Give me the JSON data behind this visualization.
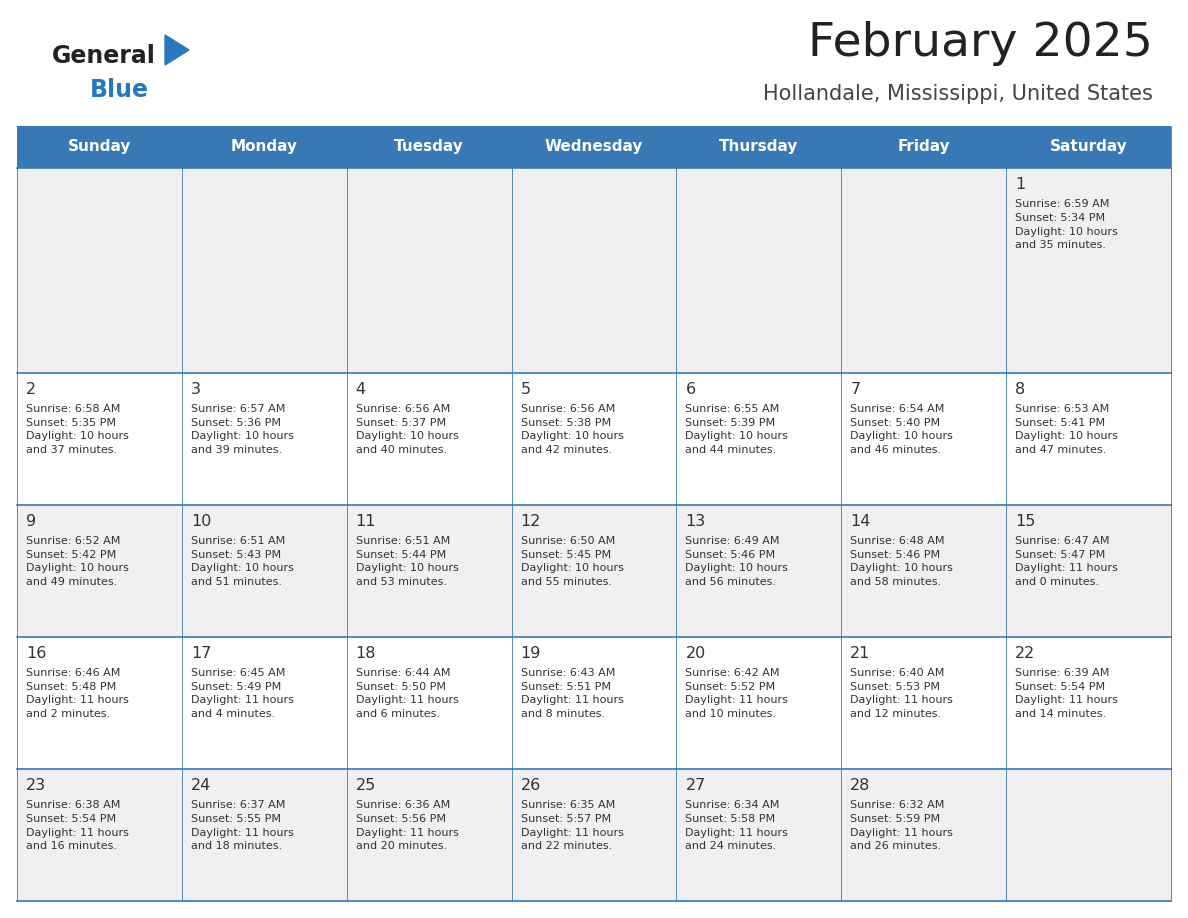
{
  "title": "February 2025",
  "subtitle": "Hollandale, Mississippi, United States",
  "days_of_week": [
    "Sunday",
    "Monday",
    "Tuesday",
    "Wednesday",
    "Thursday",
    "Friday",
    "Saturday"
  ],
  "header_bg": "#3878b4",
  "header_text": "#ffffff",
  "row_bg_odd": "#f0f0f0",
  "row_bg_even": "#ffffff",
  "cell_border_color": "#3878b4",
  "day_num_color": "#333333",
  "info_color": "#333333",
  "title_color": "#222222",
  "subtitle_color": "#444444",
  "logo_general_color": "#222222",
  "logo_blue_color": "#2878be",
  "calendar": [
    [
      null,
      null,
      null,
      null,
      null,
      null,
      {
        "day": 1,
        "sunrise": "6:59 AM",
        "sunset": "5:34 PM",
        "daylight": "10 hours and 35 minutes."
      }
    ],
    [
      {
        "day": 2,
        "sunrise": "6:58 AM",
        "sunset": "5:35 PM",
        "daylight": "10 hours and 37 minutes."
      },
      {
        "day": 3,
        "sunrise": "6:57 AM",
        "sunset": "5:36 PM",
        "daylight": "10 hours and 39 minutes."
      },
      {
        "day": 4,
        "sunrise": "6:56 AM",
        "sunset": "5:37 PM",
        "daylight": "10 hours and 40 minutes."
      },
      {
        "day": 5,
        "sunrise": "6:56 AM",
        "sunset": "5:38 PM",
        "daylight": "10 hours and 42 minutes."
      },
      {
        "day": 6,
        "sunrise": "6:55 AM",
        "sunset": "5:39 PM",
        "daylight": "10 hours and 44 minutes."
      },
      {
        "day": 7,
        "sunrise": "6:54 AM",
        "sunset": "5:40 PM",
        "daylight": "10 hours and 46 minutes."
      },
      {
        "day": 8,
        "sunrise": "6:53 AM",
        "sunset": "5:41 PM",
        "daylight": "10 hours and 47 minutes."
      }
    ],
    [
      {
        "day": 9,
        "sunrise": "6:52 AM",
        "sunset": "5:42 PM",
        "daylight": "10 hours and 49 minutes."
      },
      {
        "day": 10,
        "sunrise": "6:51 AM",
        "sunset": "5:43 PM",
        "daylight": "10 hours and 51 minutes."
      },
      {
        "day": 11,
        "sunrise": "6:51 AM",
        "sunset": "5:44 PM",
        "daylight": "10 hours and 53 minutes."
      },
      {
        "day": 12,
        "sunrise": "6:50 AM",
        "sunset": "5:45 PM",
        "daylight": "10 hours and 55 minutes."
      },
      {
        "day": 13,
        "sunrise": "6:49 AM",
        "sunset": "5:46 PM",
        "daylight": "10 hours and 56 minutes."
      },
      {
        "day": 14,
        "sunrise": "6:48 AM",
        "sunset": "5:46 PM",
        "daylight": "10 hours and 58 minutes."
      },
      {
        "day": 15,
        "sunrise": "6:47 AM",
        "sunset": "5:47 PM",
        "daylight": "11 hours and 0 minutes."
      }
    ],
    [
      {
        "day": 16,
        "sunrise": "6:46 AM",
        "sunset": "5:48 PM",
        "daylight": "11 hours and 2 minutes."
      },
      {
        "day": 17,
        "sunrise": "6:45 AM",
        "sunset": "5:49 PM",
        "daylight": "11 hours and 4 minutes."
      },
      {
        "day": 18,
        "sunrise": "6:44 AM",
        "sunset": "5:50 PM",
        "daylight": "11 hours and 6 minutes."
      },
      {
        "day": 19,
        "sunrise": "6:43 AM",
        "sunset": "5:51 PM",
        "daylight": "11 hours and 8 minutes."
      },
      {
        "day": 20,
        "sunrise": "6:42 AM",
        "sunset": "5:52 PM",
        "daylight": "11 hours and 10 minutes."
      },
      {
        "day": 21,
        "sunrise": "6:40 AM",
        "sunset": "5:53 PM",
        "daylight": "11 hours and 12 minutes."
      },
      {
        "day": 22,
        "sunrise": "6:39 AM",
        "sunset": "5:54 PM",
        "daylight": "11 hours and 14 minutes."
      }
    ],
    [
      {
        "day": 23,
        "sunrise": "6:38 AM",
        "sunset": "5:54 PM",
        "daylight": "11 hours and 16 minutes."
      },
      {
        "day": 24,
        "sunrise": "6:37 AM",
        "sunset": "5:55 PM",
        "daylight": "11 hours and 18 minutes."
      },
      {
        "day": 25,
        "sunrise": "6:36 AM",
        "sunset": "5:56 PM",
        "daylight": "11 hours and 20 minutes."
      },
      {
        "day": 26,
        "sunrise": "6:35 AM",
        "sunset": "5:57 PM",
        "daylight": "11 hours and 22 minutes."
      },
      {
        "day": 27,
        "sunrise": "6:34 AM",
        "sunset": "5:58 PM",
        "daylight": "11 hours and 24 minutes."
      },
      {
        "day": 28,
        "sunrise": "6:32 AM",
        "sunset": "5:59 PM",
        "daylight": "11 hours and 26 minutes."
      },
      null
    ]
  ],
  "num_rows": 5,
  "num_cols": 7
}
